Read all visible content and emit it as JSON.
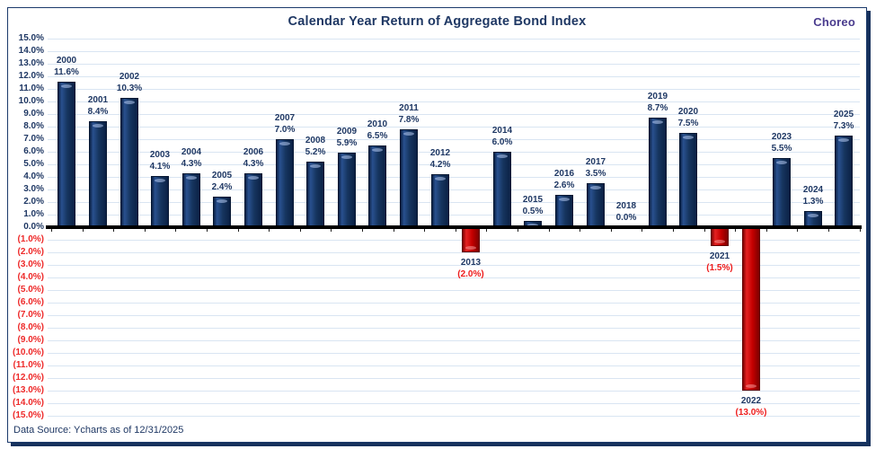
{
  "header": {
    "title": "Calendar Year Return of Aggregate Bond Index",
    "logo": "Choreo"
  },
  "footer": {
    "source": "Data Source: Ycharts as of 12/31/2025"
  },
  "chart_data": {
    "type": "bar",
    "title": "Calendar Year Return of Aggregate Bond Index",
    "categories": [
      "2000",
      "2001",
      "2002",
      "2003",
      "2004",
      "2005",
      "2006",
      "2007",
      "2008",
      "2009",
      "2010",
      "2011",
      "2012",
      "2013",
      "2014",
      "2015",
      "2016",
      "2017",
      "2018",
      "2019",
      "2020",
      "2021",
      "2022",
      "2023",
      "2024",
      "2025"
    ],
    "values": [
      11.6,
      8.4,
      10.3,
      4.1,
      4.3,
      2.4,
      4.3,
      7.0,
      5.2,
      5.9,
      6.5,
      7.8,
      4.2,
      -2.0,
      6.0,
      0.5,
      2.6,
      3.5,
      0.0,
      8.7,
      7.5,
      -1.5,
      -13.0,
      5.5,
      1.3,
      7.3
    ],
    "value_labels": [
      "11.6%",
      "8.4%",
      "10.3%",
      "4.1%",
      "4.3%",
      "2.4%",
      "4.3%",
      "7.0%",
      "5.2%",
      "5.9%",
      "6.5%",
      "7.8%",
      "4.2%",
      "(2.0%)",
      "6.0%",
      "0.5%",
      "2.6%",
      "3.5%",
      "0.0%",
      "8.7%",
      "7.5%",
      "(1.5%)",
      "(13.0%)",
      "5.5%",
      "1.3%",
      "7.3%"
    ],
    "xlabel": "",
    "ylabel": "",
    "ylim": [
      -15,
      15
    ],
    "ytick_step": 1.0,
    "ytick_format_negative": "parentheses-red",
    "grid": true,
    "legend": "none",
    "colors": {
      "positive_bar": "#15305F",
      "negative_bar": "#C40000",
      "ytick_positive": "#1F3864",
      "ytick_negative": "#EE2A2A",
      "year_label": "#1F3864",
      "value_label_negative": "#EE1C1C",
      "gridline": "#D9E5F2",
      "zero_line": "#000000",
      "panel_border": "#1B3A6B",
      "title": "#1F3864",
      "logo": "#4A3C8E"
    }
  }
}
